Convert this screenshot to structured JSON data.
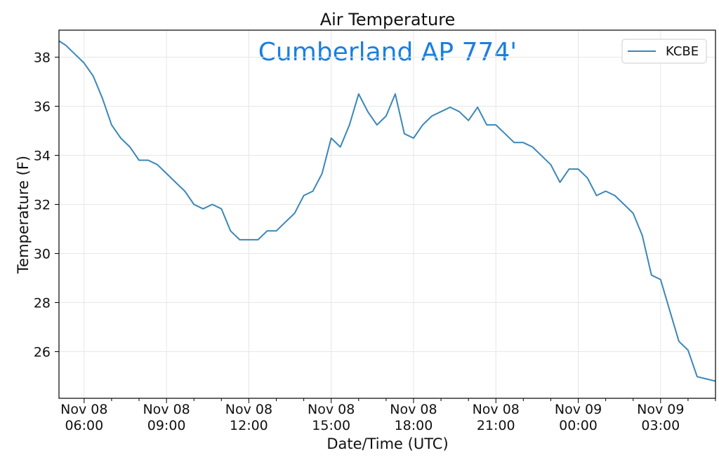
{
  "chart_data": {
    "type": "line",
    "title": "Air Temperature",
    "subtitle": "Cumberland AP 774'",
    "xlabel": "Date/Time (UTC)",
    "ylabel": "Temperature (F)",
    "ylim": [
      24.1,
      39.1
    ],
    "yticks": [
      26,
      28,
      30,
      32,
      34,
      36,
      38
    ],
    "xlim": [
      "2018-11-08T05:05",
      "2018-11-09T05:00"
    ],
    "xticks": [
      {
        "t": "2018-11-08T06:00",
        "label": [
          "Nov 08",
          "06:00"
        ]
      },
      {
        "t": "2018-11-08T09:00",
        "label": [
          "Nov 08",
          "09:00"
        ]
      },
      {
        "t": "2018-11-08T12:00",
        "label": [
          "Nov 08",
          "12:00"
        ]
      },
      {
        "t": "2018-11-08T15:00",
        "label": [
          "Nov 08",
          "15:00"
        ]
      },
      {
        "t": "2018-11-08T18:00",
        "label": [
          "Nov 08",
          "18:00"
        ]
      },
      {
        "t": "2018-11-08T21:00",
        "label": [
          "Nov 08",
          "21:00"
        ]
      },
      {
        "t": "2018-11-09T00:00",
        "label": [
          "Nov 09",
          "00:00"
        ]
      },
      {
        "t": "2018-11-09T03:00",
        "label": [
          "Nov 09",
          "03:00"
        ]
      }
    ],
    "grid": true,
    "legend_position": "top-right",
    "series": [
      {
        "name": "KCBE",
        "color": "#3a87b8",
        "x": [
          "2018-11-08T05:05",
          "2018-11-08T05:20",
          "2018-11-08T05:40",
          "2018-11-08T06:00",
          "2018-11-08T06:20",
          "2018-11-08T06:40",
          "2018-11-08T07:00",
          "2018-11-08T07:20",
          "2018-11-08T07:40",
          "2018-11-08T08:00",
          "2018-11-08T08:20",
          "2018-11-08T08:40",
          "2018-11-08T09:00",
          "2018-11-08T09:20",
          "2018-11-08T09:40",
          "2018-11-08T10:00",
          "2018-11-08T10:20",
          "2018-11-08T10:40",
          "2018-11-08T11:00",
          "2018-11-08T11:20",
          "2018-11-08T11:40",
          "2018-11-08T12:00",
          "2018-11-08T12:20",
          "2018-11-08T12:40",
          "2018-11-08T13:00",
          "2018-11-08T13:20",
          "2018-11-08T13:40",
          "2018-11-08T14:00",
          "2018-11-08T14:20",
          "2018-11-08T14:40",
          "2018-11-08T15:00",
          "2018-11-08T15:20",
          "2018-11-08T15:40",
          "2018-11-08T16:00",
          "2018-11-08T16:20",
          "2018-11-08T16:40",
          "2018-11-08T17:00",
          "2018-11-08T17:20",
          "2018-11-08T17:40",
          "2018-11-08T18:00",
          "2018-11-08T18:20",
          "2018-11-08T18:40",
          "2018-11-08T19:00",
          "2018-11-08T19:20",
          "2018-11-08T19:40",
          "2018-11-08T20:00",
          "2018-11-08T20:20",
          "2018-11-08T20:40",
          "2018-11-08T21:00",
          "2018-11-08T21:20",
          "2018-11-08T21:40",
          "2018-11-08T22:00",
          "2018-11-08T22:20",
          "2018-11-08T22:40",
          "2018-11-08T23:00",
          "2018-11-08T23:20",
          "2018-11-08T23:40",
          "2018-11-09T00:00",
          "2018-11-09T00:20",
          "2018-11-09T00:40",
          "2018-11-09T01:00",
          "2018-11-09T01:20",
          "2018-11-09T01:40",
          "2018-11-09T02:00",
          "2018-11-09T02:20",
          "2018-11-09T02:40",
          "2018-11-09T03:00",
          "2018-11-09T03:20",
          "2018-11-09T03:40",
          "2018-11-09T04:00",
          "2018-11-09T04:20",
          "2018-11-09T04:40",
          "2018-11-09T05:00"
        ],
        "values": [
          38.66,
          38.48,
          38.12,
          37.76,
          37.22,
          36.32,
          35.24,
          34.7,
          34.34,
          33.8,
          33.8,
          33.62,
          33.26,
          32.9,
          32.54,
          32.0,
          31.82,
          32.0,
          31.82,
          30.92,
          30.56,
          30.56,
          30.56,
          30.92,
          30.92,
          31.28,
          31.64,
          32.36,
          32.54,
          33.26,
          34.7,
          34.34,
          35.24,
          36.5,
          35.78,
          35.24,
          35.6,
          36.5,
          34.88,
          34.7,
          35.24,
          35.6,
          35.78,
          35.96,
          35.78,
          35.42,
          35.96,
          35.24,
          35.24,
          34.88,
          34.52,
          34.52,
          34.34,
          33.98,
          33.62,
          32.9,
          33.44,
          33.44,
          33.08,
          32.36,
          32.54,
          32.36,
          32.0,
          31.64,
          30.74,
          29.12,
          28.94,
          27.68,
          26.42,
          26.06,
          24.98,
          24.89,
          24.8
        ]
      }
    ]
  }
}
